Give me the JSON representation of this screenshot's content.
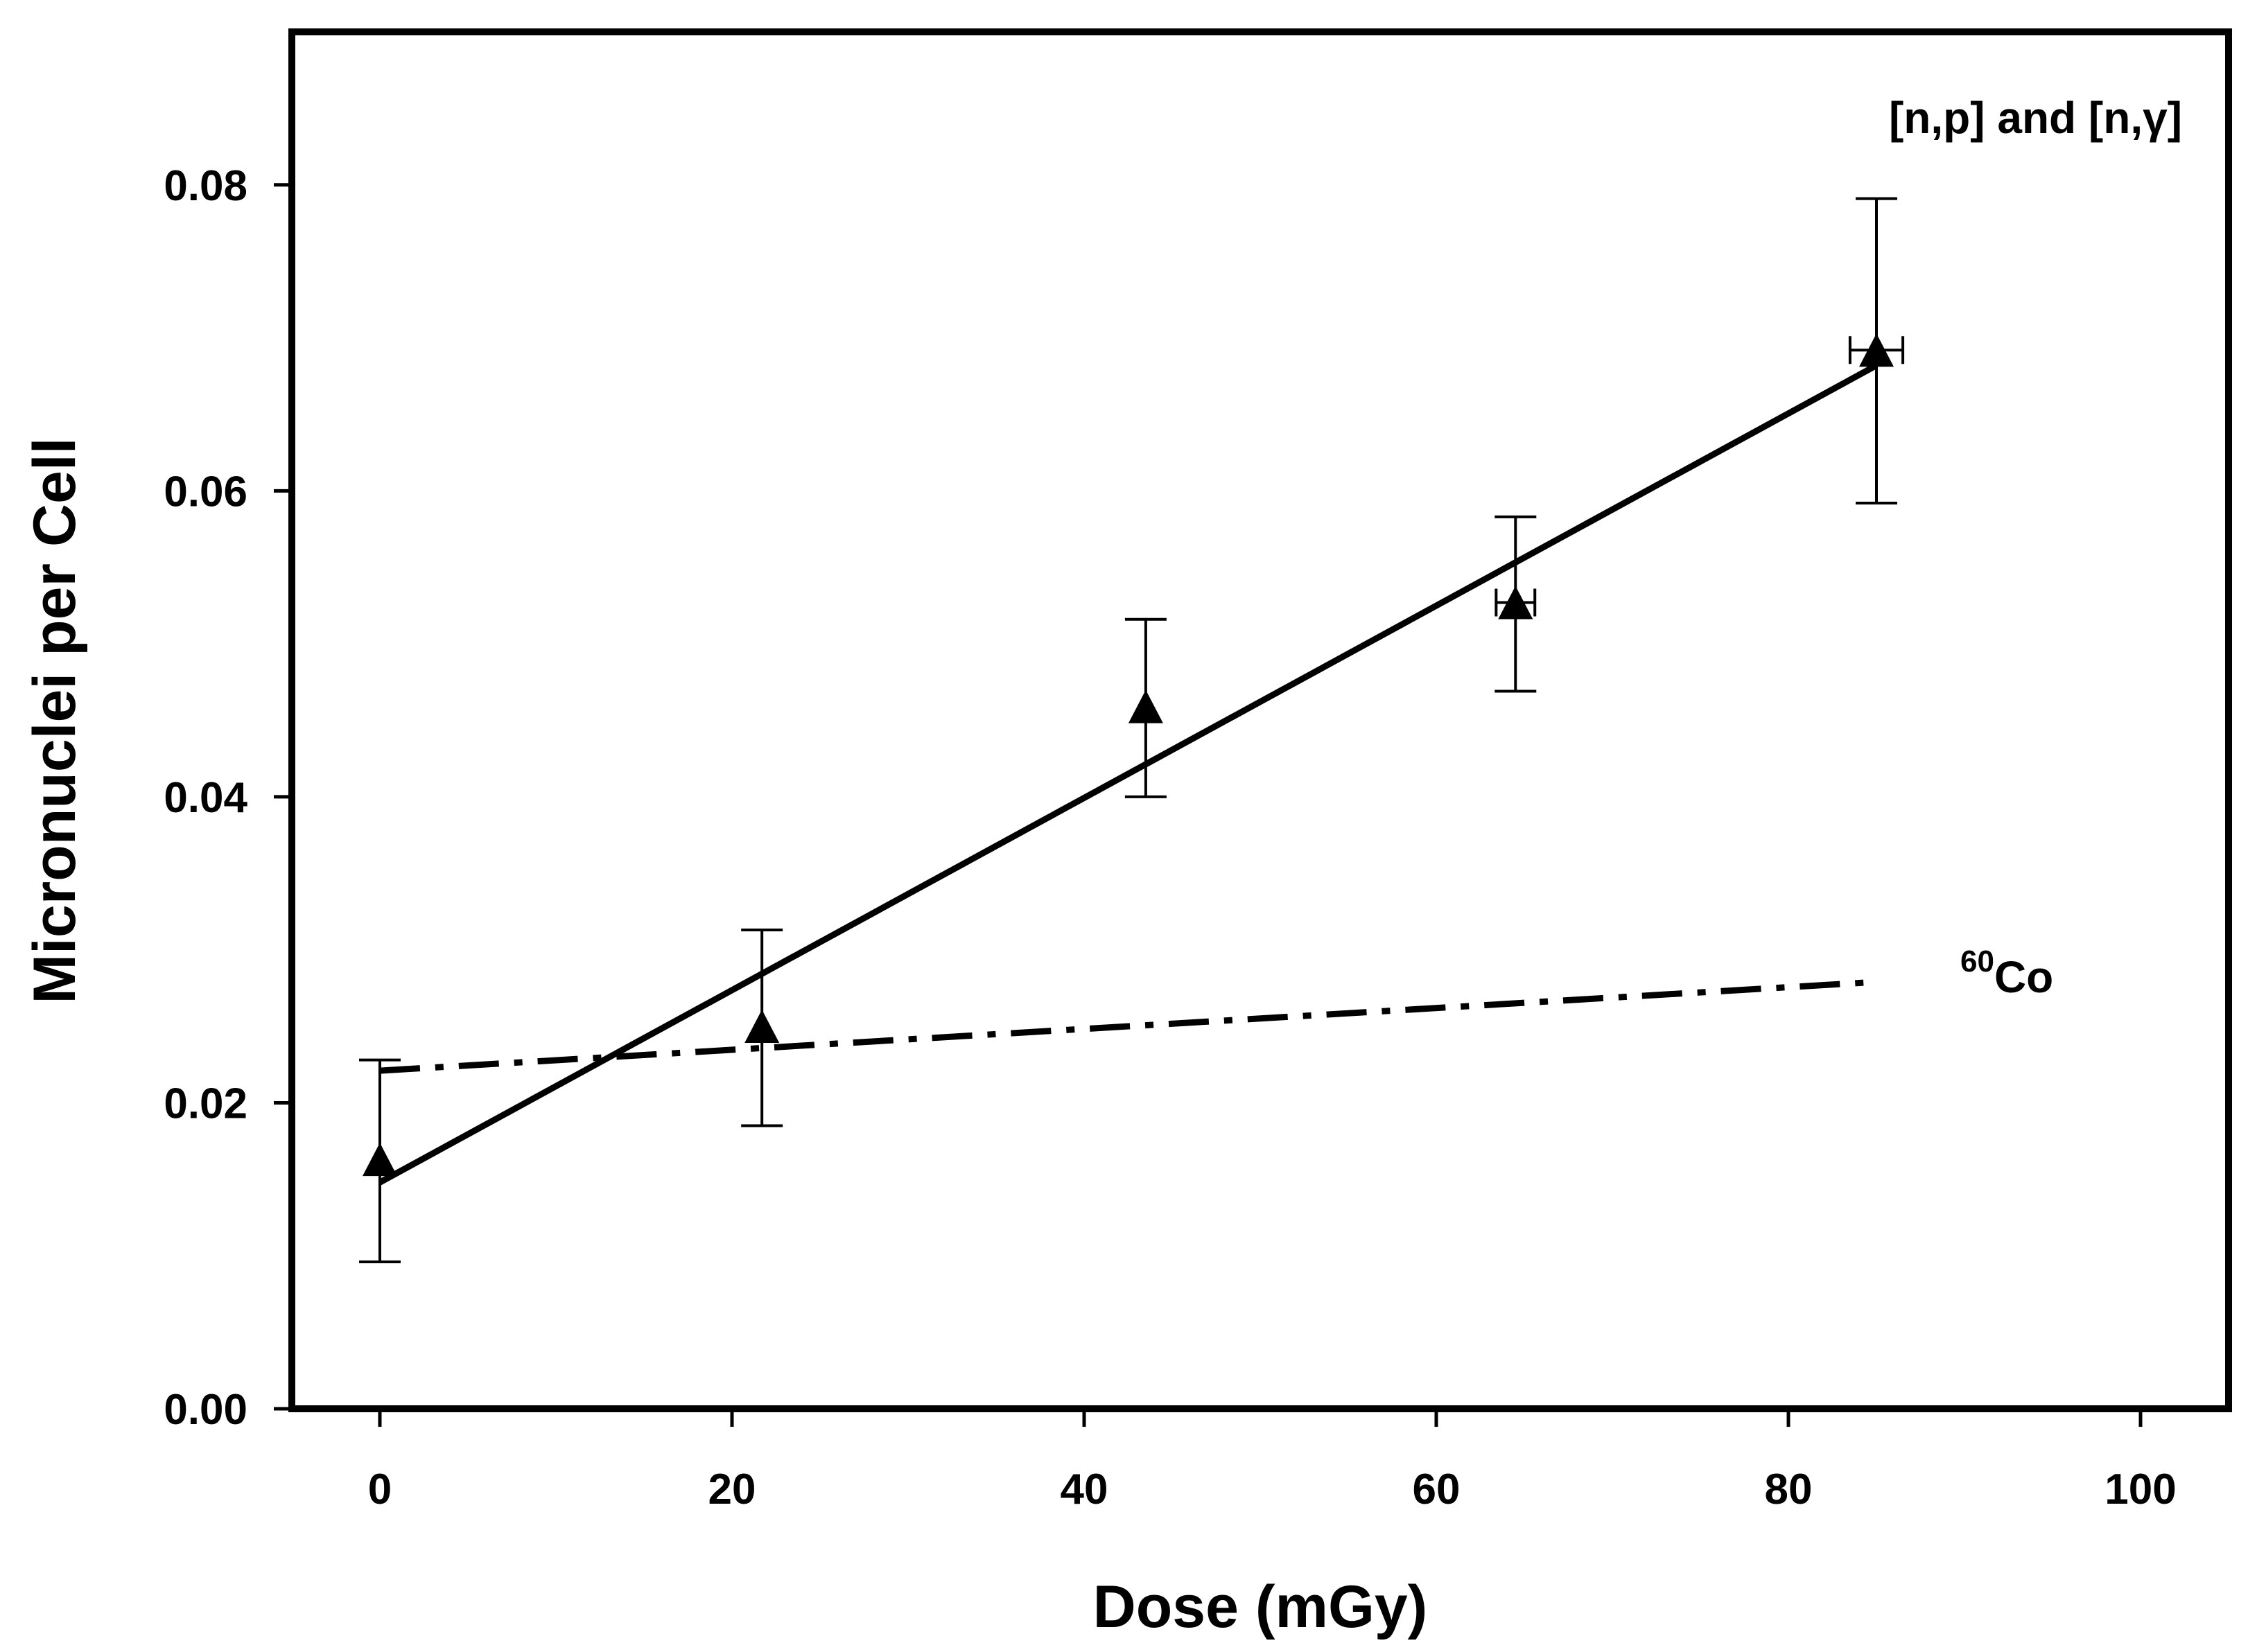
{
  "chart_data": {
    "type": "scatter",
    "title": "",
    "xlabel": "Dose (mGy)",
    "ylabel": "Micronuclei per Cell",
    "xlim": [
      -5,
      105
    ],
    "ylim": [
      0,
      0.09
    ],
    "x_ticks": [
      0,
      20,
      40,
      60,
      80,
      100
    ],
    "x_tick_labels": [
      "0",
      "20",
      "40",
      "60",
      "80",
      "100"
    ],
    "y_ticks": [
      0.0,
      0.02,
      0.04,
      0.06,
      0.08
    ],
    "y_tick_labels": [
      "0.00",
      "0.02",
      "0.04",
      "0.06",
      "0.08"
    ],
    "grid": false,
    "series": [
      {
        "name": "[n,p] and [n,γ]",
        "marker": "triangle",
        "points": [
          {
            "x": 0,
            "y": 0.0163,
            "yerr_low": 0.0096,
            "yerr_high": 0.0228,
            "xerr": 0
          },
          {
            "x": 21.7,
            "y": 0.025,
            "yerr_low": 0.0185,
            "yerr_high": 0.0313,
            "xerr": 0
          },
          {
            "x": 43.5,
            "y": 0.0459,
            "yerr_low": 0.04,
            "yerr_high": 0.0516,
            "xerr": 0
          },
          {
            "x": 64.5,
            "y": 0.0527,
            "yerr_low": 0.0469,
            "yerr_high": 0.0583,
            "xerr": 1.1
          },
          {
            "x": 85.0,
            "y": 0.0692,
            "yerr_low": 0.0592,
            "yerr_high": 0.0791,
            "xerr": 1.5
          }
        ]
      }
    ],
    "fit_lines": [
      {
        "name": "[n,p] and [n,γ] fit",
        "style": "solid",
        "x": [
          0,
          85
        ],
        "y": [
          0.0148,
          0.0682
        ]
      },
      {
        "name": "60Co",
        "style": "dashdot",
        "x": [
          0,
          85
        ],
        "y": [
          0.0221,
          0.0279
        ]
      }
    ],
    "annotations": {
      "neutron_label": "[n,p] and [n,γ]",
      "cobalt_sup": "60",
      "cobalt_main": "Co"
    }
  }
}
